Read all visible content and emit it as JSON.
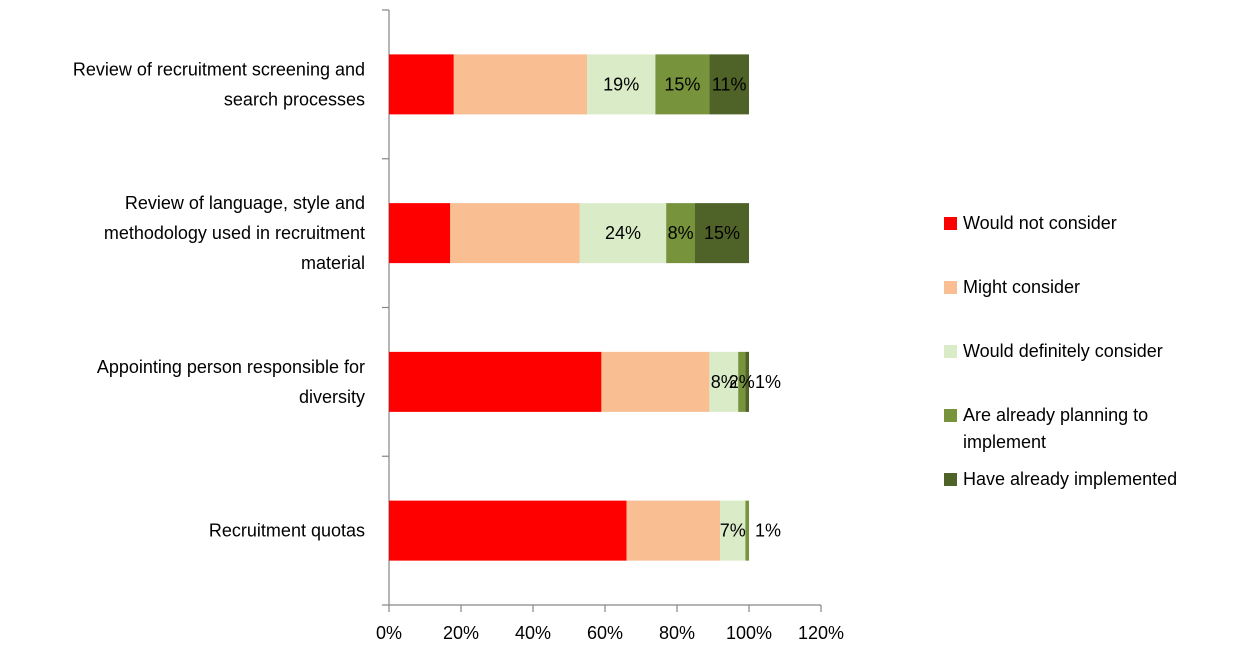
{
  "chart_data": {
    "type": "bar",
    "orientation": "horizontal",
    "stacked": true,
    "categories": [
      [
        "Review of recruitment screening and",
        "search processes"
      ],
      [
        "Review of language, style and",
        "methodology used in recruitment",
        "material"
      ],
      [
        "Appointing person responsible for",
        "diversity"
      ],
      [
        "Recruitment quotas"
      ]
    ],
    "series": [
      {
        "name": "Would not consider",
        "color": "#ff0000",
        "values": [
          18,
          17,
          59,
          66
        ],
        "labels": [
          "",
          "",
          "",
          ""
        ]
      },
      {
        "name": "Might consider",
        "color": "#f9be92",
        "values": [
          37,
          36,
          30,
          26
        ],
        "labels": [
          "",
          "",
          "",
          ""
        ]
      },
      {
        "name": "Would definitely consider",
        "color": "#d9ebc7",
        "values": [
          19,
          24,
          8,
          7
        ],
        "labels": [
          "19%",
          "24%",
          "8%",
          "7%"
        ]
      },
      {
        "name": "Are already planning to implement",
        "color": "#77933c",
        "values": [
          15,
          8,
          2,
          1
        ],
        "labels": [
          "15%",
          "8%",
          "2%",
          "1%"
        ]
      },
      {
        "name": "Have already implemented",
        "color": "#4f6228",
        "values": [
          11,
          15,
          1,
          0
        ],
        "labels": [
          "11%",
          "15%",
          "1%",
          ""
        ]
      }
    ],
    "xlim": [
      0,
      120
    ],
    "xticks": [
      "0%",
      "20%",
      "40%",
      "60%",
      "80%",
      "100%",
      "120%"
    ],
    "legend": {
      "position": "right",
      "entries": [
        [
          "Would not consider"
        ],
        [
          "Might consider"
        ],
        [
          "Would definitely consider"
        ],
        [
          "Are already planning to",
          "implement"
        ],
        [
          "Have already implemented"
        ]
      ]
    },
    "grid": false
  }
}
